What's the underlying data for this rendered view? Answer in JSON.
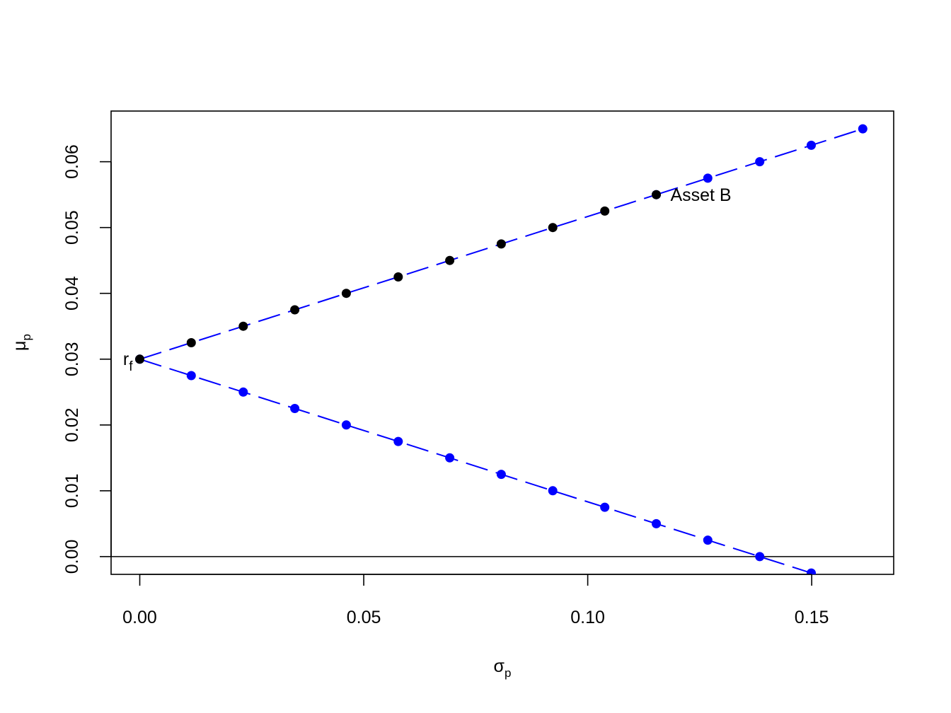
{
  "chart_data": {
    "type": "scatter",
    "xlabel": "σ",
    "xlabel_sub": "p",
    "ylabel": "μ",
    "ylabel_sub": "p",
    "xlim": [
      -0.0064,
      0.1683
    ],
    "ylim": [
      -0.0027,
      0.0677
    ],
    "x_ticks": [
      0.0,
      0.05,
      0.1,
      0.15
    ],
    "x_tick_labels": [
      "0.00",
      "0.05",
      "0.10",
      "0.15"
    ],
    "y_ticks": [
      0.0,
      0.01,
      0.02,
      0.03,
      0.04,
      0.05,
      0.06
    ],
    "y_tick_labels": [
      "0.00",
      "0.01",
      "0.02",
      "0.03",
      "0.04",
      "0.05",
      "0.06"
    ],
    "grid": false,
    "legend": "none",
    "hline": 0,
    "series": [
      {
        "color": "#0000ff",
        "line_color": "#0000ff",
        "line_style": "dashed",
        "x": [
          0.1153,
          0.1268,
          0.1384,
          0.1499,
          0.1614
        ],
        "y": [
          0.055,
          0.0575,
          0.06,
          0.0625,
          0.065
        ]
      },
      {
        "color": "#0000ff",
        "line_color": "#0000ff",
        "line_style": "dashed",
        "x": [
          0.0,
          0.0115,
          0.0231,
          0.0346,
          0.0461,
          0.0577,
          0.0692,
          0.0807,
          0.0922,
          0.1038,
          0.1153,
          0.1268,
          0.1384,
          0.1499
        ],
        "y": [
          0.03,
          0.0275,
          0.025,
          0.0225,
          0.02,
          0.0175,
          0.015,
          0.0125,
          0.01,
          0.0075,
          0.005,
          0.0025,
          0.0,
          -0.0025
        ]
      },
      {
        "color": "#000000",
        "line_color": "#0000ff",
        "line_style": "dashed",
        "x": [
          0.0,
          0.0115,
          0.0231,
          0.0346,
          0.0461,
          0.0577,
          0.0692,
          0.0807,
          0.0922,
          0.1038,
          0.1153
        ],
        "y": [
          0.03,
          0.0325,
          0.035,
          0.0375,
          0.04,
          0.0425,
          0.045,
          0.0475,
          0.05,
          0.0525,
          0.055
        ]
      }
    ],
    "annotations": [
      {
        "text": "r",
        "sub": "f",
        "x": 0.0,
        "y": 0.03,
        "anchor": "left"
      },
      {
        "text": "Asset B",
        "x": 0.1153,
        "y": 0.055,
        "anchor": "right"
      }
    ]
  }
}
